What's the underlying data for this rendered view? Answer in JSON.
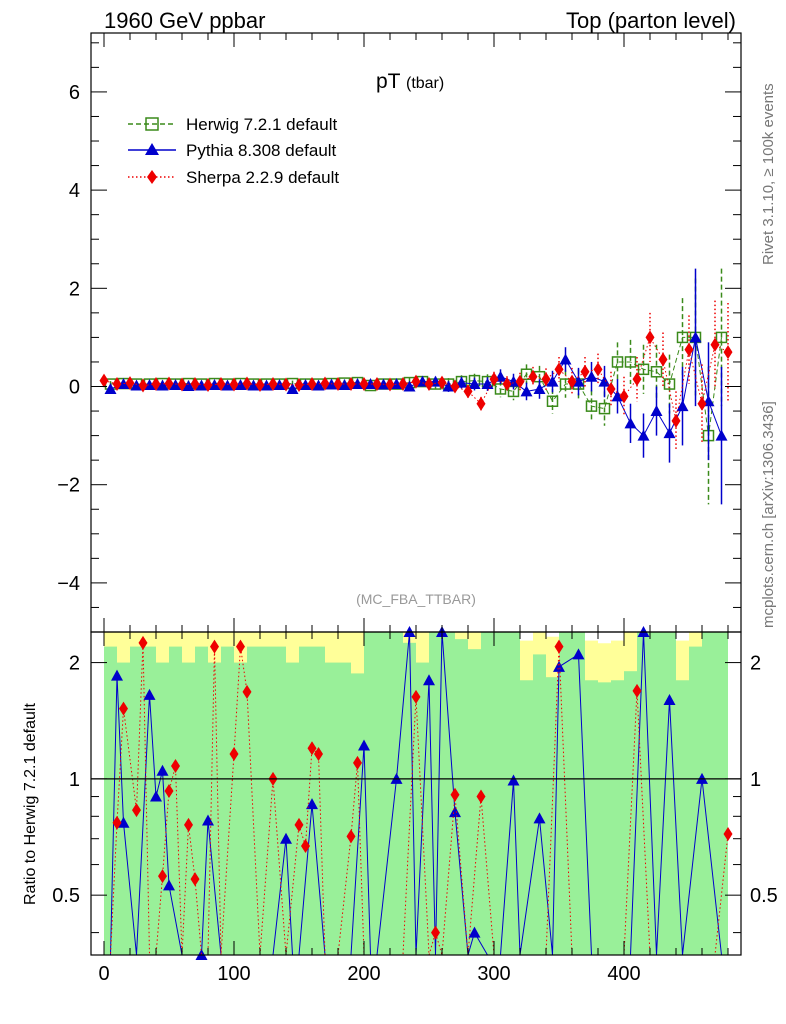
{
  "header": {
    "left_title": "1960 GeV ppbar",
    "right_title": "Top (parton level)"
  },
  "side_labels": {
    "rivet": "Rivet 3.1.10, ≥ 100k events",
    "mcplots": "mcplots.cern.ch [arXiv:1306.3436]"
  },
  "colors": {
    "herwig": "#3a8a1a",
    "pythia": "#0000cc",
    "sherpa": "#ee0000",
    "band_green": "#99f099",
    "band_yellow": "#ffff99"
  },
  "chart_data": [
    {
      "type": "scatter",
      "title": "pT",
      "title_sub": "(tbar)",
      "watermark": "(MC_FBA_TTBAR)",
      "xlabel": "",
      "ylabel": "",
      "xlim": [
        -10,
        490
      ],
      "ylim": [
        -5,
        7.2
      ],
      "yticks": [
        -4,
        -2,
        0,
        2,
        4,
        6
      ],
      "legend_position": "top-left",
      "series": [
        {
          "name": "Herwig 7.2.1 default",
          "marker": "open-square",
          "line": "dashed",
          "x": [
            5,
            15,
            25,
            35,
            45,
            55,
            65,
            75,
            85,
            95,
            105,
            115,
            125,
            135,
            145,
            155,
            165,
            175,
            185,
            195,
            205,
            215,
            225,
            235,
            245,
            255,
            265,
            275,
            285,
            295,
            305,
            315,
            325,
            335,
            345,
            355,
            365,
            375,
            385,
            395,
            405,
            415,
            425,
            435,
            445,
            455,
            465,
            475
          ],
          "y": [
            0.05,
            0.06,
            0.05,
            0.05,
            0.06,
            0.05,
            0.06,
            0.05,
            0.06,
            0.05,
            0.06,
            0.05,
            0.05,
            0.05,
            0.06,
            0.05,
            0.05,
            0.06,
            0.07,
            0.08,
            0.02,
            0.05,
            0.05,
            0.08,
            0.1,
            0.05,
            0.05,
            0.1,
            0.12,
            0.1,
            -0.05,
            -0.1,
            0.25,
            0.2,
            -0.3,
            0.05,
            0.05,
            -0.4,
            -0.45,
            0.5,
            0.5,
            0.35,
            0.3,
            0.05,
            1.0,
            1.0,
            -1.0,
            1.0
          ],
          "err": [
            0.06,
            0.06,
            0.06,
            0.06,
            0.06,
            0.06,
            0.06,
            0.06,
            0.06,
            0.06,
            0.06,
            0.06,
            0.06,
            0.06,
            0.06,
            0.06,
            0.06,
            0.06,
            0.07,
            0.07,
            0.08,
            0.08,
            0.09,
            0.1,
            0.1,
            0.11,
            0.12,
            0.13,
            0.14,
            0.15,
            0.17,
            0.18,
            0.2,
            0.22,
            0.25,
            0.28,
            0.3,
            0.32,
            0.35,
            0.4,
            0.45,
            0.5,
            0.55,
            0.6,
            0.8,
            1.2,
            1.4,
            1.4
          ]
        },
        {
          "name": "Pythia 8.308 default",
          "marker": "filled-triangle",
          "line": "solid",
          "x": [
            5,
            15,
            25,
            35,
            45,
            55,
            65,
            75,
            85,
            95,
            105,
            115,
            125,
            135,
            145,
            155,
            165,
            175,
            185,
            195,
            205,
            215,
            225,
            235,
            245,
            255,
            265,
            275,
            285,
            295,
            305,
            315,
            325,
            335,
            345,
            355,
            365,
            375,
            385,
            395,
            405,
            415,
            425,
            435,
            445,
            455,
            465,
            475
          ],
          "y": [
            -0.05,
            0.05,
            0.02,
            0.03,
            0.02,
            0.03,
            0.01,
            0.02,
            0.03,
            0.02,
            0.03,
            0.02,
            0.02,
            0.03,
            -0.05,
            0.03,
            0.02,
            0.04,
            0.03,
            0.05,
            0.05,
            0.04,
            0.05,
            0.0,
            0.1,
            0.1,
            0.0,
            0.08,
            0.05,
            0.05,
            0.2,
            0.1,
            -0.1,
            -0.05,
            0.1,
            0.55,
            0.1,
            0.2,
            0.1,
            -0.2,
            -0.75,
            -1.0,
            -0.5,
            -0.95,
            -0.4,
            1.0,
            -0.3,
            -1.0
          ],
          "err": [
            0.05,
            0.05,
            0.05,
            0.05,
            0.05,
            0.05,
            0.05,
            0.05,
            0.05,
            0.05,
            0.05,
            0.05,
            0.05,
            0.05,
            0.05,
            0.05,
            0.05,
            0.05,
            0.06,
            0.06,
            0.07,
            0.07,
            0.08,
            0.09,
            0.1,
            0.1,
            0.11,
            0.12,
            0.13,
            0.14,
            0.15,
            0.16,
            0.18,
            0.2,
            0.22,
            0.25,
            0.28,
            0.3,
            0.32,
            0.35,
            0.4,
            0.45,
            0.5,
            0.6,
            0.8,
            1.4,
            1.2,
            1.4
          ]
        },
        {
          "name": "Sherpa 2.2.9 default",
          "marker": "filled-diamond",
          "line": "dotted",
          "x": [
            0,
            10,
            20,
            30,
            40,
            50,
            60,
            70,
            80,
            90,
            100,
            110,
            120,
            130,
            140,
            150,
            160,
            170,
            180,
            190,
            200,
            210,
            220,
            230,
            240,
            250,
            260,
            270,
            280,
            290,
            300,
            310,
            320,
            330,
            340,
            350,
            360,
            370,
            380,
            390,
            400,
            410,
            420,
            430,
            440,
            450,
            460,
            470,
            480
          ],
          "y": [
            0.12,
            0.05,
            0.07,
            0.02,
            0.05,
            0.06,
            0.04,
            0.05,
            0.03,
            0.05,
            0.04,
            0.06,
            0.03,
            0.05,
            0.04,
            0.03,
            0.05,
            0.06,
            0.05,
            0.05,
            0.05,
            0.05,
            0.04,
            0.05,
            0.1,
            0.05,
            0.08,
            0.0,
            -0.1,
            -0.35,
            0.15,
            0.05,
            0.1,
            0.2,
            0.15,
            0.35,
            0.1,
            0.3,
            0.35,
            -0.05,
            -0.2,
            0.15,
            1.0,
            0.55,
            -0.7,
            0.75,
            -0.35,
            0.85,
            0.7
          ],
          "err": [
            0.05,
            0.05,
            0.05,
            0.05,
            0.05,
            0.05,
            0.05,
            0.05,
            0.05,
            0.05,
            0.05,
            0.05,
            0.05,
            0.05,
            0.05,
            0.05,
            0.05,
            0.05,
            0.06,
            0.06,
            0.07,
            0.07,
            0.08,
            0.08,
            0.09,
            0.1,
            0.11,
            0.12,
            0.13,
            0.14,
            0.15,
            0.16,
            0.18,
            0.2,
            0.22,
            0.25,
            0.28,
            0.3,
            0.32,
            0.35,
            0.4,
            0.45,
            0.5,
            0.55,
            0.6,
            0.7,
            0.8,
            0.9,
            1.0
          ]
        }
      ]
    },
    {
      "type": "scatter",
      "title": "",
      "ylabel": "Ratio to Herwig 7.2.1 default",
      "xlabel": "",
      "xlim": [
        -10,
        490
      ],
      "ylim": [
        0.35,
        2.4
      ],
      "ytick_labels": [
        "0.5",
        "1",
        "2"
      ],
      "xtick_labels": [
        "0",
        "100",
        "200",
        "300",
        "400"
      ],
      "reference_line": 1,
      "series": [
        {
          "name": "Pythia 8.308 default",
          "x": [
            5,
            10,
            15,
            25,
            35,
            40,
            45,
            50,
            60,
            65,
            70,
            75,
            80,
            90,
            100,
            110,
            120,
            130,
            140,
            145,
            150,
            160,
            170,
            180,
            190,
            200,
            205,
            210,
            225,
            235,
            240,
            250,
            255,
            260,
            270,
            280,
            285,
            295,
            305,
            315,
            320,
            335,
            345,
            350,
            365,
            375,
            385,
            395,
            405,
            415,
            425,
            435,
            445,
            460,
            475
          ],
          "y": [
            0.3,
            1.85,
            0.77,
            0.3,
            1.65,
            0.9,
            1.05,
            0.53,
            0.3,
            0.3,
            0.3,
            0.35,
            0.78,
            0.3,
            0.3,
            0.3,
            0.3,
            0.3,
            0.7,
            0.3,
            0.3,
            0.86,
            0.3,
            0.3,
            0.3,
            1.22,
            0.3,
            0.3,
            1.0,
            2.4,
            0.3,
            1.8,
            0.3,
            2.4,
            0.82,
            0.3,
            0.4,
            0.3,
            0.3,
            0.99,
            0.3,
            0.79,
            0.3,
            1.95,
            2.1,
            0.3,
            0.3,
            0.3,
            0.3,
            2.4,
            0.3,
            1.6,
            0.3,
            1.0,
            0.3
          ]
        },
        {
          "name": "Sherpa 2.2.9 default",
          "x": [
            0,
            5,
            10,
            15,
            25,
            30,
            35,
            40,
            45,
            50,
            55,
            60,
            65,
            70,
            75,
            80,
            85,
            90,
            100,
            105,
            110,
            120,
            130,
            140,
            150,
            155,
            160,
            165,
            170,
            180,
            190,
            195,
            200,
            210,
            220,
            230,
            240,
            250,
            255,
            260,
            270,
            280,
            290,
            300,
            310,
            320,
            330,
            340,
            350,
            360,
            370,
            380,
            390,
            400,
            410,
            420,
            430,
            440,
            450,
            460,
            470,
            480
          ],
          "y": [
            0.3,
            0.3,
            0.77,
            1.52,
            0.83,
            2.25,
            0.3,
            0.3,
            0.56,
            0.93,
            1.08,
            0.3,
            0.76,
            0.55,
            0.3,
            0.3,
            2.2,
            0.3,
            1.16,
            2.2,
            1.68,
            0.3,
            1.0,
            0.3,
            0.76,
            0.67,
            1.2,
            1.16,
            0.3,
            0.3,
            0.71,
            1.1,
            0.3,
            0.3,
            0.3,
            0.3,
            1.63,
            0.3,
            0.4,
            0.3,
            0.91,
            0.3,
            0.9,
            0.3,
            0.3,
            0.3,
            0.3,
            0.3,
            2.2,
            0.3,
            0.3,
            0.3,
            0.3,
            0.3,
            1.69,
            0.3,
            0.3,
            0.3,
            0.3,
            0.3,
            0.3,
            0.72
          ]
        }
      ]
    }
  ]
}
